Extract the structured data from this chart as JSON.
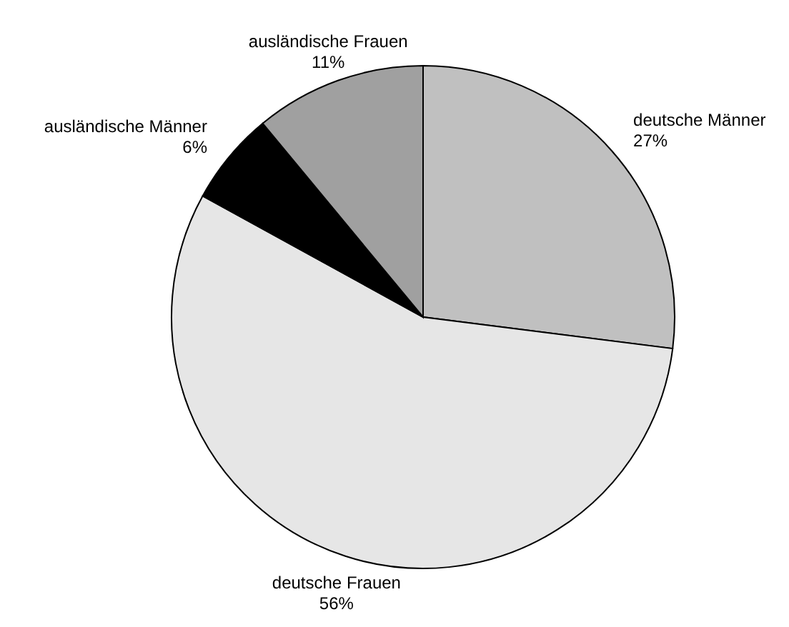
{
  "chart_data": {
    "type": "pie",
    "categories": [
      "deutsche Männer",
      "deutsche Frauen",
      "ausländische Männer",
      "ausländische Frauen"
    ],
    "values": [
      27,
      56,
      6,
      11
    ],
    "value_labels": [
      "27%",
      "56%",
      "6%",
      "11%"
    ],
    "colors": [
      "#c0c0c0",
      "#e6e6e6",
      "#000000",
      "#a0a0a0"
    ]
  }
}
